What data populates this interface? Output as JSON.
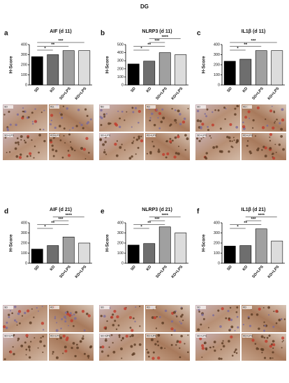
{
  "title": "DG",
  "chart_data": [
    {
      "type": "bar",
      "panel": "a",
      "title": "AIF (d 11)",
      "ylabel": "H-Score",
      "categories": [
        "SD",
        "KD",
        "SD+LPS",
        "KD+LPS"
      ],
      "values": [
        280,
        300,
        340,
        340
      ],
      "colors": [
        "#000000",
        "#6e6e6e",
        "#a0a0a0",
        "#dcdcdc"
      ],
      "ylim": [
        0,
        400
      ],
      "yticks": [
        0,
        100,
        200,
        300,
        400
      ],
      "annotations": [
        "*",
        "**",
        "***"
      ]
    },
    {
      "type": "bar",
      "panel": "b",
      "title": "NLRP3 (d 11)",
      "ylabel": "H-Score",
      "categories": [
        "SD",
        "KD",
        "SD+LPS",
        "KD+LPS"
      ],
      "values": [
        260,
        295,
        400,
        375
      ],
      "colors": [
        "#000000",
        "#6e6e6e",
        "#a0a0a0",
        "#dcdcdc"
      ],
      "ylim": [
        0,
        500
      ],
      "yticks": [
        0,
        100,
        200,
        300,
        400,
        500
      ],
      "annotations": [
        "*",
        "**",
        "***",
        "****"
      ]
    },
    {
      "type": "bar",
      "panel": "c",
      "title": "IL1β (d 11)",
      "ylabel": "H-Score",
      "categories": [
        "SD",
        "KD",
        "SD+LPS",
        "KD+LPS"
      ],
      "values": [
        235,
        255,
        340,
        340
      ],
      "colors": [
        "#000000",
        "#6e6e6e",
        "#a0a0a0",
        "#dcdcdc"
      ],
      "ylim": [
        0,
        400
      ],
      "yticks": [
        0,
        100,
        200,
        300,
        400
      ],
      "annotations": [
        "*",
        "**",
        "***"
      ]
    },
    {
      "type": "bar",
      "panel": "d",
      "title": "AIF (d 21)",
      "ylabel": "H-Score",
      "categories": [
        "SD",
        "KD",
        "SD+LPS",
        "KD+LPS"
      ],
      "values": [
        140,
        175,
        260,
        200
      ],
      "colors": [
        "#000000",
        "#6e6e6e",
        "#a0a0a0",
        "#dcdcdc"
      ],
      "ylim": [
        0,
        400
      ],
      "yticks": [
        0,
        100,
        200,
        300,
        400
      ],
      "annotations": [
        "*",
        "**",
        "***",
        "****"
      ]
    },
    {
      "type": "bar",
      "panel": "e",
      "title": "NLRP3 (d 21)",
      "ylabel": "H-Score",
      "categories": [
        "SD",
        "KD",
        "SD+LPS",
        "KD+LPS"
      ],
      "values": [
        180,
        195,
        360,
        300
      ],
      "colors": [
        "#000000",
        "#6e6e6e",
        "#a0a0a0",
        "#dcdcdc"
      ],
      "ylim": [
        0,
        400
      ],
      "yticks": [
        0,
        100,
        200,
        300,
        400
      ],
      "annotations": [
        "*",
        "**",
        "***",
        "****"
      ]
    },
    {
      "type": "bar",
      "panel": "f",
      "title": "IL1β (d 21)",
      "ylabel": "H-Score",
      "categories": [
        "SD",
        "KD",
        "SD+LPS",
        "KD+LPS"
      ],
      "values": [
        170,
        175,
        340,
        220
      ],
      "colors": [
        "#000000",
        "#6e6e6e",
        "#a0a0a0",
        "#dcdcdc"
      ],
      "ylim": [
        0,
        400
      ],
      "yticks": [
        0,
        100,
        200,
        300,
        400
      ],
      "annotations": [
        "*",
        "**",
        "***",
        "****"
      ]
    }
  ]
}
